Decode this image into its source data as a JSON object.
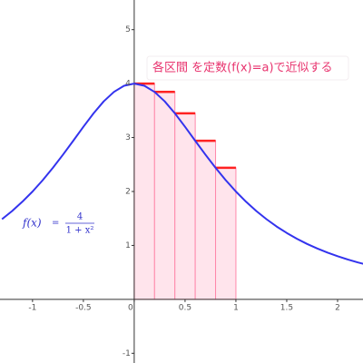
{
  "chart_data": {
    "type": "line",
    "xlim": [
      -1.32,
      2.25
    ],
    "ylim": [
      -1.18,
      5.55
    ],
    "xticks": [
      -1,
      -0.5,
      0,
      0.5,
      1,
      1.5,
      2
    ],
    "yticks": [
      -1,
      1,
      2,
      3,
      4,
      5
    ],
    "curve": {
      "color": "#3333ee",
      "x": [
        -1.3,
        -1.2,
        -1.1,
        -1.0,
        -0.9,
        -0.8,
        -0.7,
        -0.6,
        -0.5,
        -0.4,
        -0.3,
        -0.2,
        -0.1,
        0,
        0.1,
        0.2,
        0.3,
        0.4,
        0.5,
        0.6,
        0.7,
        0.8,
        0.9,
        1.0,
        1.1,
        1.2,
        1.3,
        1.4,
        1.5,
        1.6,
        1.7,
        1.8,
        1.9,
        2.0,
        2.1,
        2.2,
        2.3
      ],
      "values": [
        1.487,
        1.639,
        1.81,
        2,
        2.21,
        2.439,
        2.685,
        2.941,
        3.2,
        3.448,
        3.67,
        3.846,
        3.96,
        4,
        3.96,
        3.846,
        3.67,
        3.448,
        3.2,
        2.941,
        2.685,
        2.439,
        2.21,
        2,
        1.81,
        1.639,
        1.487,
        1.351,
        1.231,
        1.123,
        1.028,
        0.943,
        0.868,
        0.8,
        0.739,
        0.685,
        0.636
      ]
    },
    "steps": {
      "color": "#ff2222",
      "edge_color": "#ff88aa",
      "fill": "#ffe4ec",
      "bins": [
        0,
        0.2,
        0.4,
        0.6,
        0.8,
        1.0
      ],
      "values": [
        4,
        3.846,
        3.448,
        2.941,
        2.439
      ]
    },
    "annotation": "各区間 を定数(f(x)=a)で近似する",
    "formula": {
      "lhs": "f(x)",
      "eq": "=",
      "numerator": "4",
      "denominator": "1 + x²"
    }
  }
}
